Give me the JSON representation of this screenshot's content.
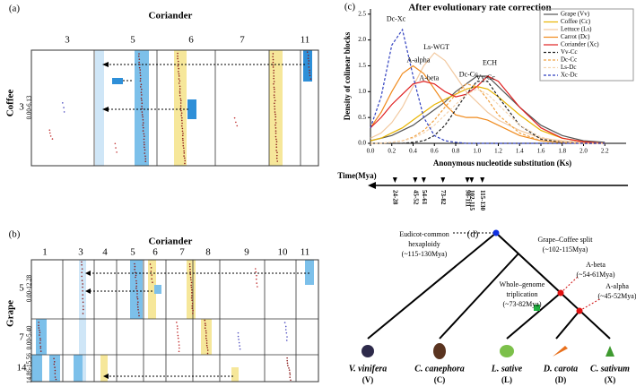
{
  "panel_a": {
    "label": "(a)",
    "top_title": "Coriander",
    "side_title": "Coffee",
    "columns": [
      "3",
      "5",
      "6",
      "7",
      "11"
    ],
    "rows": [
      {
        "label": "3",
        "range": "0.00-6.13"
      }
    ]
  },
  "panel_b": {
    "label": "(b)",
    "top_title": "Coriander",
    "side_title": "Grape",
    "columns": [
      "1",
      "3",
      "4",
      "5",
      "6",
      "7",
      "8",
      "9",
      "10",
      "11"
    ],
    "rows": [
      {
        "label": "5",
        "range": "0.00-12.28"
      },
      {
        "label": "7",
        "range": "0.00-5.40"
      },
      {
        "label": "14",
        "range": "14.86-15.56"
      }
    ]
  },
  "chart_data": {
    "type": "line",
    "label": "(c)",
    "title": "After evolutionary rate correction",
    "x_label": "Anonymous nucleotide substitution (Ks)",
    "y_label": "Density of colinear blocks",
    "x": [
      0.0,
      0.1,
      0.2,
      0.3,
      0.4,
      0.5,
      0.6,
      0.7,
      0.8,
      0.9,
      1.0,
      1.1,
      1.2,
      1.4,
      1.6,
      1.8,
      2.0,
      2.2
    ],
    "xlim": [
      0,
      2.4
    ],
    "ylim": [
      0,
      2.6
    ],
    "xticks": [
      {
        "value": 0,
        "label": "0.0"
      },
      0.2,
      0.4,
      0.6,
      0.8,
      {
        "value": 1,
        "label": "1.0"
      },
      1.2,
      1.4,
      1.6,
      1.8,
      {
        "value": 2,
        "label": "2.0"
      },
      2.2
    ],
    "yticks": [
      {
        "value": 0,
        "label": "0.0"
      },
      0.5,
      {
        "value": 1,
        "label": "1.0"
      },
      1.5,
      {
        "value": 2,
        "label": "2.0"
      },
      2.5
    ],
    "series": [
      {
        "name": "Grape (Vv)",
        "color": "#555555",
        "dashed": false,
        "values": [
          0.05,
          0.1,
          0.15,
          0.25,
          0.35,
          0.5,
          0.65,
          0.8,
          1.0,
          1.15,
          1.3,
          1.3,
          1.1,
          0.7,
          0.35,
          0.15,
          0.05,
          0.02
        ]
      },
      {
        "name": "Coffee (Cc)",
        "color": "#e8b400",
        "dashed": false,
        "values": [
          0.05,
          0.1,
          0.2,
          0.3,
          0.45,
          0.6,
          0.75,
          0.85,
          0.95,
          1.05,
          1.1,
          1.05,
          0.9,
          0.55,
          0.25,
          0.1,
          0.03,
          0
        ]
      },
      {
        "name": "Lettuce (Ls)",
        "color": "#f2c9a0",
        "dashed": false,
        "values": [
          0.1,
          0.2,
          0.4,
          0.7,
          1.1,
          1.5,
          1.75,
          1.6,
          1.3,
          1.0,
          0.8,
          0.6,
          0.45,
          0.25,
          0.1,
          0.05,
          0.02,
          0
        ]
      },
      {
        "name": "Carrot (Dc)",
        "color": "#f08a1c",
        "dashed": false,
        "values": [
          0.3,
          0.6,
          1.0,
          1.35,
          1.5,
          1.35,
          1.05,
          0.75,
          0.55,
          0.5,
          0.5,
          0.45,
          0.35,
          0.15,
          0.05,
          0.02,
          0,
          0
        ]
      },
      {
        "name": "Coriander (Xc)",
        "color": "#e02020",
        "dashed": false,
        "values": [
          0.3,
          0.5,
          0.75,
          0.95,
          1.15,
          1.2,
          1.15,
          1.0,
          0.9,
          0.95,
          1.1,
          1.3,
          1.2,
          0.7,
          0.3,
          0.1,
          0.03,
          0
        ]
      },
      {
        "name": "Vv-Cc",
        "color": "#222222",
        "dashed": true,
        "values": [
          0,
          0,
          0,
          0,
          0.02,
          0.05,
          0.15,
          0.35,
          0.65,
          0.95,
          1.2,
          1.2,
          0.9,
          0.35,
          0.08,
          0.02,
          0,
          0
        ]
      },
      {
        "name": "Dc-Cc",
        "color": "#f0a040",
        "dashed": true,
        "values": [
          0,
          0,
          0.02,
          0.05,
          0.12,
          0.25,
          0.45,
          0.7,
          0.95,
          1.15,
          1.1,
          0.85,
          0.55,
          0.2,
          0.05,
          0.01,
          0,
          0
        ]
      },
      {
        "name": "Ls-Dc",
        "color": "#f5d5b0",
        "dashed": true,
        "values": [
          0,
          0,
          0.02,
          0.05,
          0.1,
          0.2,
          0.35,
          0.55,
          0.75,
          0.95,
          1.05,
          0.95,
          0.75,
          0.35,
          0.12,
          0.03,
          0,
          0
        ]
      },
      {
        "name": "Xc-Dc",
        "color": "#2f3fbf",
        "dashed": true,
        "values": [
          0.3,
          0.9,
          1.9,
          2.2,
          1.3,
          0.5,
          0.15,
          0.05,
          0.02,
          0,
          0,
          0,
          0,
          0,
          0,
          0,
          0,
          0
        ]
      }
    ],
    "annotations": [
      "Dc-Xc",
      "A-alpha",
      "Ls-WGT",
      "A-beta",
      "Dc-Cc",
      "ECH",
      "Vv-Cc"
    ],
    "time_label": "Time(Mya)",
    "time_marks": [
      {
        "label": "24-28",
        "ks": 0.23
      },
      {
        "label": "45-52",
        "ks": 0.42
      },
      {
        "label": "54-61",
        "ks": 0.5
      },
      {
        "label": "73-82",
        "ks": 0.68
      },
      {
        "label": "98-111",
        "ks": 0.91
      },
      {
        "label": "102-115",
        "ks": 0.95
      },
      {
        "label": "115-130",
        "ks": 1.05
      }
    ]
  },
  "panel_d": {
    "label": "(d)",
    "events": [
      [
        "Eudicot-common",
        "hexaploidy",
        "(~115-130Mya)"
      ],
      [
        "Grape–Coffee split",
        "(~102-115Mya)"
      ],
      [
        "A-beta",
        "(~54-61Mya)"
      ],
      [
        "Whole–genome",
        "triplication",
        "(~73-82Mya)"
      ],
      [
        "A-alpha",
        "(~45-52Mya)"
      ]
    ],
    "species": [
      {
        "name": "V. vinifera",
        "code": "(V)"
      },
      {
        "name": "C. canephora",
        "code": "(C)"
      },
      {
        "name": "L. sative",
        "code": "(L)"
      },
      {
        "name": "D. carota",
        "code": "(D)"
      },
      {
        "name": "C. sativum",
        "code": "(X)"
      }
    ]
  }
}
